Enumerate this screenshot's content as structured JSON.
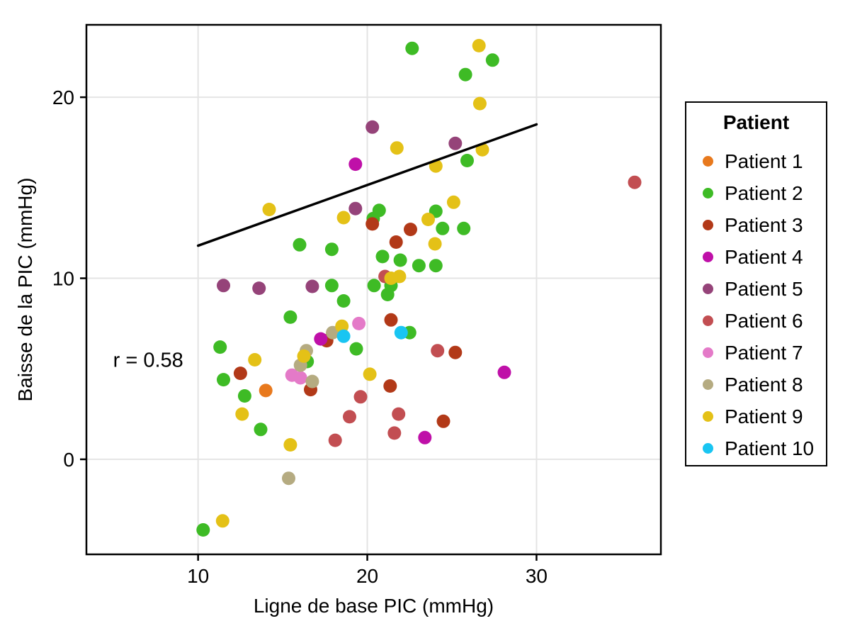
{
  "page": {
    "background": "#FFFFFF"
  },
  "chart_data": {
    "type": "scatter",
    "title": "",
    "xlabel": "Ligne de base PIC (mmHg)",
    "ylabel": "Baisse de la PIC (mmHg)",
    "xlim": [
      3.4,
      37.35
    ],
    "ylim": [
      -5.25,
      24.0
    ],
    "xticks": [
      10,
      20,
      30
    ],
    "yticks": [
      0,
      10,
      20
    ],
    "grid": true,
    "colors": {
      "grid": "#E4E4E4",
      "frame": "#000000",
      "regression": "#000000"
    },
    "annotation": {
      "text": "r = 0.58",
      "x": 7.05,
      "y": 5.5
    },
    "regression_line": {
      "x1": 10,
      "y1": 11.8,
      "x2": 30,
      "y2": 18.5
    },
    "legend": {
      "title": "Patient",
      "position": "right"
    },
    "series": [
      {
        "name": "Patient 1",
        "color": "#E8791D",
        "points": [
          [
            14.0,
            3.8
          ]
        ]
      },
      {
        "name": "Patient 2",
        "color": "#3EBB25",
        "points": [
          [
            22.65,
            22.7
          ],
          [
            27.4,
            22.05
          ],
          [
            25.8,
            21.25
          ],
          [
            25.9,
            16.5
          ],
          [
            20.7,
            13.75
          ],
          [
            24.05,
            13.7
          ],
          [
            20.35,
            13.3
          ],
          [
            24.45,
            12.75
          ],
          [
            25.7,
            12.75
          ],
          [
            16.0,
            11.85
          ],
          [
            17.9,
            11.6
          ],
          [
            20.9,
            11.2
          ],
          [
            21.95,
            11.0
          ],
          [
            23.05,
            10.7
          ],
          [
            24.05,
            10.7
          ],
          [
            20.4,
            9.6
          ],
          [
            21.4,
            9.6
          ],
          [
            17.9,
            9.6
          ],
          [
            21.2,
            9.1
          ],
          [
            18.6,
            8.75
          ],
          [
            15.45,
            7.85
          ],
          [
            22.5,
            7.0
          ],
          [
            19.35,
            6.1
          ],
          [
            11.3,
            6.2
          ],
          [
            16.45,
            5.4
          ],
          [
            11.5,
            4.4
          ],
          [
            12.75,
            3.5
          ],
          [
            13.7,
            1.65
          ],
          [
            10.3,
            -3.9
          ]
        ]
      },
      {
        "name": "Patient 3",
        "color": "#B23918",
        "points": [
          [
            20.3,
            13.0
          ],
          [
            22.55,
            12.7
          ],
          [
            21.7,
            12.0
          ],
          [
            21.4,
            7.7
          ],
          [
            17.6,
            6.55
          ],
          [
            25.2,
            5.9
          ],
          [
            12.5,
            4.75
          ],
          [
            21.35,
            4.05
          ],
          [
            16.65,
            3.85
          ],
          [
            24.5,
            2.1
          ]
        ]
      },
      {
        "name": "Patient 4",
        "color": "#BF10A8",
        "points": [
          [
            19.3,
            16.3
          ],
          [
            17.25,
            6.65
          ],
          [
            28.1,
            4.8
          ],
          [
            23.4,
            1.2
          ]
        ]
      },
      {
        "name": "Patient 5",
        "color": "#954379",
        "points": [
          [
            20.3,
            18.35
          ],
          [
            25.2,
            17.45
          ],
          [
            19.3,
            13.85
          ],
          [
            11.5,
            9.6
          ],
          [
            13.6,
            9.45
          ],
          [
            16.75,
            9.55
          ]
        ]
      },
      {
        "name": "Patient 6",
        "color": "#C24E52",
        "points": [
          [
            35.8,
            15.3
          ],
          [
            21.05,
            10.1
          ],
          [
            24.15,
            6.0
          ],
          [
            19.6,
            3.45
          ],
          [
            21.85,
            2.5
          ],
          [
            18.95,
            2.35
          ],
          [
            21.6,
            1.45
          ],
          [
            18.1,
            1.05
          ]
        ]
      },
      {
        "name": "Patient 7",
        "color": "#E47AC8",
        "points": [
          [
            19.5,
            7.5
          ],
          [
            15.55,
            4.65
          ],
          [
            16.05,
            4.5
          ]
        ]
      },
      {
        "name": "Patient 8",
        "color": "#B5AB81",
        "points": [
          [
            17.95,
            7.0
          ],
          [
            16.4,
            6.0
          ],
          [
            16.05,
            5.2
          ],
          [
            16.75,
            4.3
          ],
          [
            15.35,
            -1.05
          ]
        ]
      },
      {
        "name": "Patient 9",
        "color": "#E4C117",
        "points": [
          [
            26.6,
            22.85
          ],
          [
            26.65,
            19.65
          ],
          [
            21.75,
            17.2
          ],
          [
            26.8,
            17.1
          ],
          [
            24.05,
            16.2
          ],
          [
            25.1,
            14.2
          ],
          [
            14.2,
            13.8
          ],
          [
            18.6,
            13.35
          ],
          [
            23.6,
            13.25
          ],
          [
            24.0,
            11.9
          ],
          [
            21.9,
            10.1
          ],
          [
            21.4,
            10.0
          ],
          [
            18.5,
            7.35
          ],
          [
            16.25,
            5.7
          ],
          [
            13.35,
            5.5
          ],
          [
            20.15,
            4.7
          ],
          [
            12.6,
            2.5
          ],
          [
            15.45,
            0.8
          ],
          [
            11.45,
            -3.4
          ]
        ]
      },
      {
        "name": "Patient 10",
        "color": "#19C5F2",
        "points": [
          [
            18.6,
            6.8
          ],
          [
            22.0,
            7.0
          ]
        ]
      }
    ]
  }
}
